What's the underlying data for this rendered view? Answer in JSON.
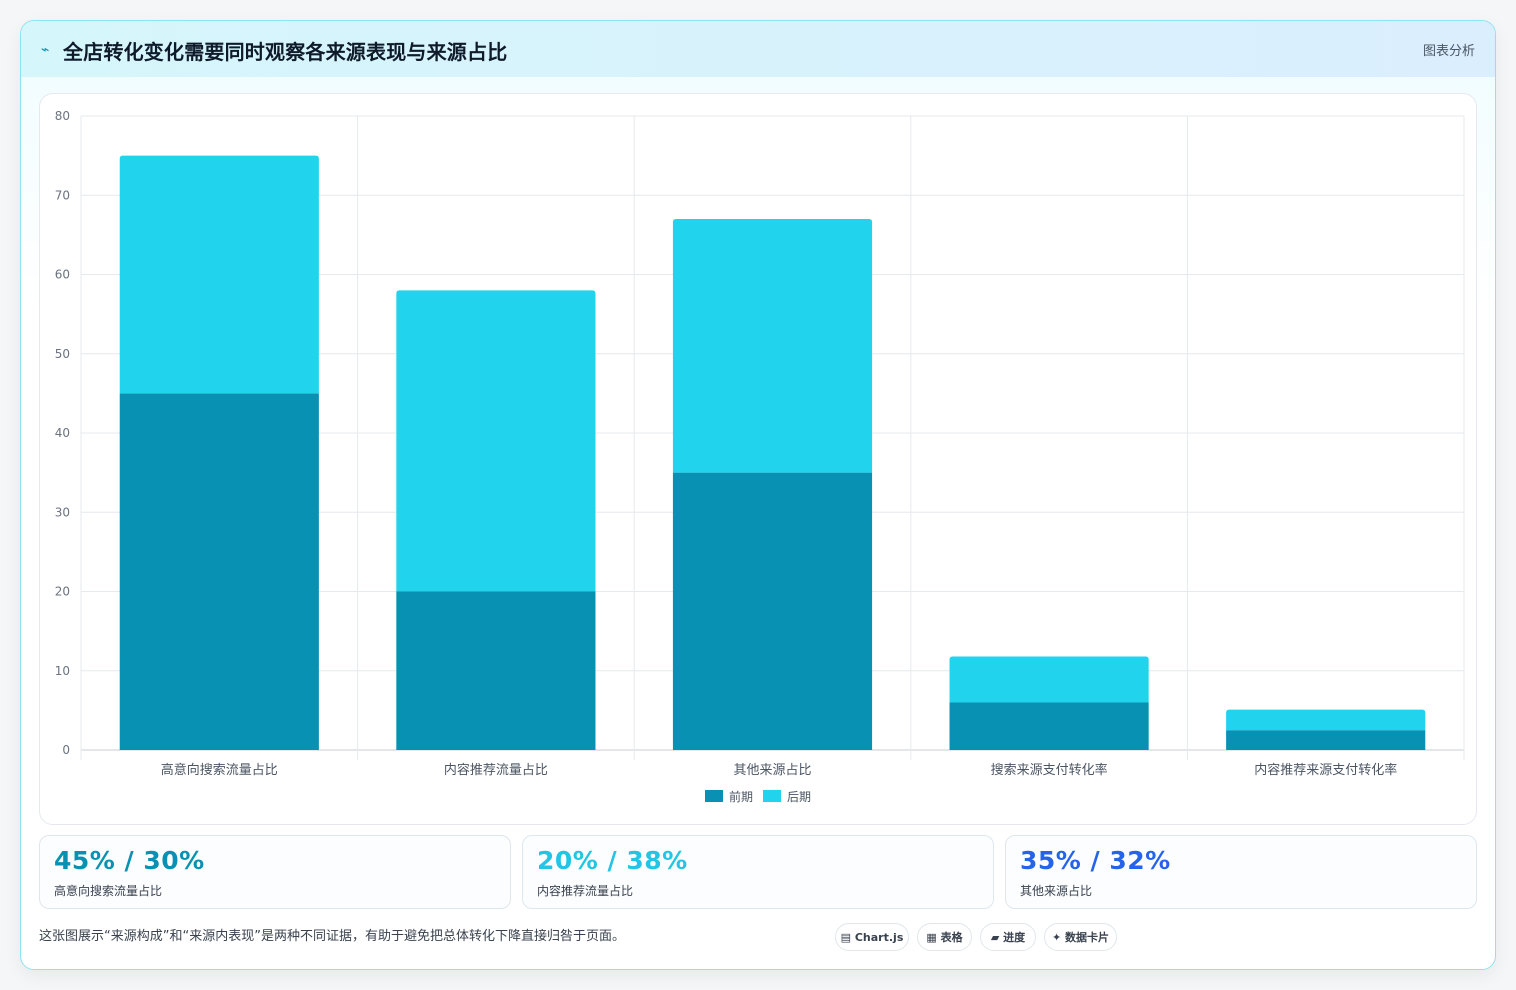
{
  "header": {
    "icon": "⌁",
    "title": "全店转化变化需要同时观察各来源表现与来源占比",
    "tag": "图表分析"
  },
  "chart_data": {
    "type": "bar",
    "stacked": true,
    "categories": [
      "高意向搜索流量占比",
      "内容推荐流量占比",
      "其他来源占比",
      "搜索来源支付转化率",
      "内容推荐来源支付转化率"
    ],
    "series": [
      {
        "name": "前期",
        "values": [
          45,
          20,
          35,
          6,
          2.5
        ],
        "color": "#0891b2"
      },
      {
        "name": "后期",
        "values": [
          30,
          38,
          32,
          5.8,
          2.6
        ],
        "color": "#22d3ee"
      }
    ],
    "yticks": [
      0,
      10,
      20,
      30,
      40,
      50,
      60,
      70,
      80
    ],
    "ylim": [
      0,
      80
    ],
    "grid": true,
    "legend": "bottom"
  },
  "stats": [
    {
      "value": "45% / 30%",
      "label": "高意向搜索流量占比",
      "color": "#0891b2"
    },
    {
      "value": "20% / 38%",
      "label": "内容推荐流量占比",
      "color": "#22c5e3"
    },
    {
      "value": "35% / 32%",
      "label": "其他来源占比",
      "color": "#2563eb"
    }
  ],
  "note": "这张图展示“来源构成”和“来源内表现”是两种不同证据，有助于避免把总体转化下降直接归咎于页面。",
  "pills": [
    {
      "icon": "▤",
      "label": "Chart.js"
    },
    {
      "icon": "▦",
      "label": "表格"
    },
    {
      "icon": "▰",
      "label": "进度"
    },
    {
      "icon": "✦",
      "label": "数据卡片"
    }
  ]
}
